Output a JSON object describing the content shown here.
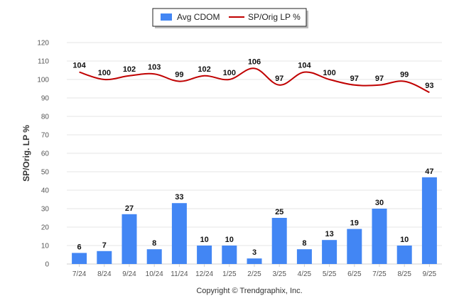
{
  "chart_data": {
    "type": "bar",
    "categories": [
      "7/24",
      "8/24",
      "9/24",
      "10/24",
      "11/24",
      "12/24",
      "1/25",
      "2/25",
      "3/25",
      "4/25",
      "5/25",
      "6/25",
      "7/25",
      "8/25",
      "9/25"
    ],
    "series": [
      {
        "name": "Avg CDOM",
        "type": "bar",
        "color": "#4286f4",
        "values": [
          6,
          7,
          27,
          8,
          33,
          10,
          10,
          3,
          25,
          8,
          13,
          19,
          30,
          10,
          47
        ]
      },
      {
        "name": "SP/Orig LP %",
        "type": "line",
        "color": "#c00000",
        "values": [
          104,
          100,
          102,
          103,
          99,
          102,
          100,
          106,
          97,
          104,
          100,
          97,
          97,
          99,
          93
        ]
      }
    ],
    "ylabel": "SP/Orig. LP %",
    "ylim": [
      0,
      120
    ],
    "yticks": [
      0,
      10,
      20,
      30,
      40,
      50,
      60,
      70,
      80,
      90,
      100,
      110,
      120
    ],
    "grid": true,
    "legend": "top-center"
  },
  "credit": "Copyright © Trendgraphix, Inc."
}
